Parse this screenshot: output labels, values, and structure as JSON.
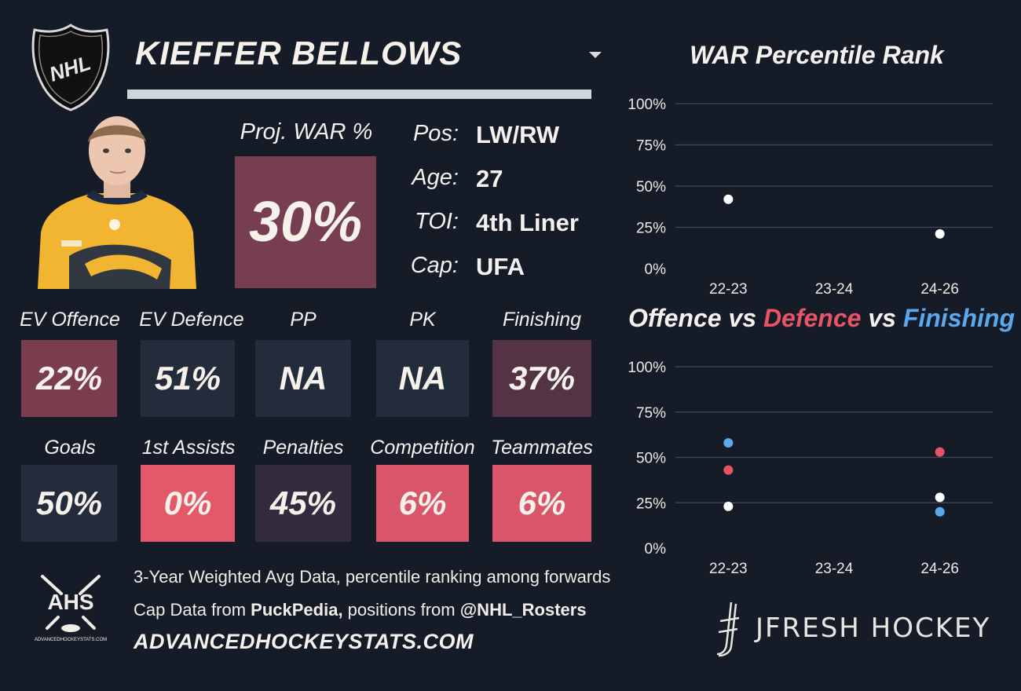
{
  "header": {
    "player_name": "KIEFFER BELLOWS",
    "logo_text": "NHL"
  },
  "projection": {
    "label": "Proj. WAR %",
    "value": "30%",
    "color": "#773d50"
  },
  "info": [
    {
      "label": "Pos:",
      "value": "LW/RW"
    },
    {
      "label": "Age:",
      "value": "27"
    },
    {
      "label": "TOI:",
      "value": "4th Liner"
    },
    {
      "label": "Cap:",
      "value": "UFA"
    }
  ],
  "stats_row1": [
    {
      "label": "EV Offence",
      "value": "22%",
      "color": "#7a3d4d"
    },
    {
      "label": "EV Defence",
      "value": "51%",
      "color": "#232c3b"
    },
    {
      "label": "PP",
      "value": "NA",
      "color": "#232c3b"
    },
    {
      "label": "PK",
      "value": "NA",
      "color": "#232c3b"
    },
    {
      "label": "Finishing",
      "value": "37%",
      "color": "#533344"
    }
  ],
  "stats_row2": [
    {
      "label": "Goals",
      "value": "50%",
      "color": "#232c3b"
    },
    {
      "label": "1st Assists",
      "value": "0%",
      "color": "#e25a6a"
    },
    {
      "label": "Penalties",
      "value": "45%",
      "color": "#332c3e"
    },
    {
      "label": "Competition",
      "value": "6%",
      "color": "#d9566a"
    },
    {
      "label": "Teammates",
      "value": "6%",
      "color": "#d9566a"
    }
  ],
  "chart_data": [
    {
      "type": "scatter",
      "title": "WAR Percentile Rank",
      "categories": [
        "22-23",
        "23-24",
        "24-26"
      ],
      "ylim": [
        0,
        100
      ],
      "yticks": [
        "0%",
        "25%",
        "50%",
        "75%",
        "100%"
      ],
      "grid": true,
      "series": [
        {
          "color": "#ffffff",
          "values": [
            42,
            null,
            21
          ]
        }
      ]
    },
    {
      "type": "scatter",
      "title_parts": [
        {
          "text": "Offence",
          "color": "#f4f1ee"
        },
        {
          "text": " vs ",
          "color": "#f4f1ee"
        },
        {
          "text": "Defence",
          "color": "#e85466"
        },
        {
          "text": " vs ",
          "color": "#f4f1ee"
        },
        {
          "text": "Finishing",
          "color": "#5aa9ee"
        }
      ],
      "categories": [
        "22-23",
        "23-24",
        "24-26"
      ],
      "ylim": [
        0,
        100
      ],
      "yticks": [
        "0%",
        "25%",
        "50%",
        "75%",
        "100%"
      ],
      "grid": true,
      "series": [
        {
          "name": "Offence",
          "color": "#ffffff",
          "values": [
            23,
            null,
            28
          ]
        },
        {
          "name": "Defence",
          "color": "#e85466",
          "values": [
            43,
            null,
            53
          ]
        },
        {
          "name": "Finishing",
          "color": "#5aa9ee",
          "values": [
            58,
            null,
            20
          ]
        }
      ]
    }
  ],
  "footer": {
    "ahs_logo_text": "AHS",
    "ahs_logo_subtext": "ADVANCEDHOCKEYSTATS.COM",
    "line1": "3-Year Weighted Avg Data, percentile ranking among forwards",
    "line2_prefix": "Cap Data from ",
    "line2_bold1": "PuckPedia,",
    "line2_mid": " positions from ",
    "line2_bold2": "@NHL_Rosters",
    "site": "ADVANCEDHOCKEYSTATS.COM",
    "brand": "JFRESH HOCKEY"
  }
}
